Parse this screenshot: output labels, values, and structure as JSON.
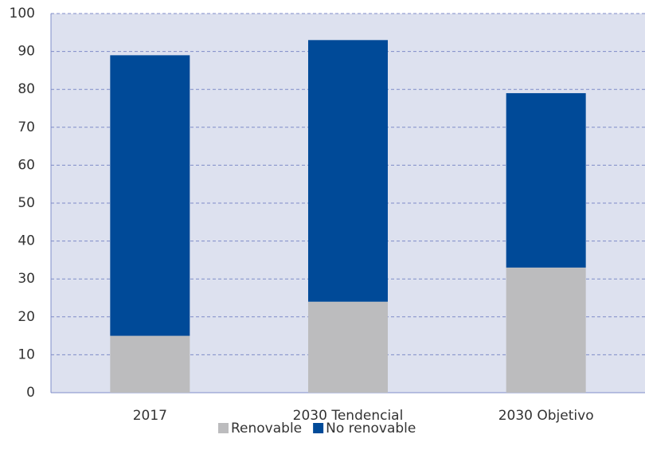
{
  "chart_data": {
    "type": "stacked_bar",
    "categories": [
      "2017",
      "2030 Tendencial",
      "2030 Objetivo"
    ],
    "series": [
      {
        "name": "Renovable",
        "color": "#bcbcbe",
        "values": [
          15,
          24,
          33
        ]
      },
      {
        "name": "No renovable",
        "color": "#004a98",
        "values": [
          74,
          69,
          46
        ]
      }
    ],
    "ylim": [
      0,
      100
    ],
    "yticks": [
      0,
      10,
      20,
      30,
      40,
      50,
      60,
      70,
      80,
      90,
      100
    ],
    "grid": true
  }
}
